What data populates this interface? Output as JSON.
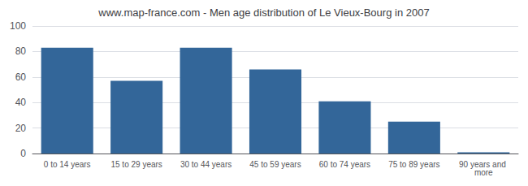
{
  "chart_data": {
    "type": "bar",
    "title": "www.map-france.com - Men age distribution of Le Vieux-Bourg in 2007",
    "categories": [
      "0 to 14 years",
      "15 to 29 years",
      "30 to 44 years",
      "45 to 59 years",
      "60 to 74 years",
      "75 to 89 years",
      "90 years and more"
    ],
    "values": [
      83,
      57,
      83,
      66,
      41,
      25,
      1
    ],
    "color": "#336699",
    "ylim": [
      0,
      100
    ],
    "yticks": [
      0,
      20,
      40,
      60,
      80,
      100
    ],
    "grid": true
  }
}
